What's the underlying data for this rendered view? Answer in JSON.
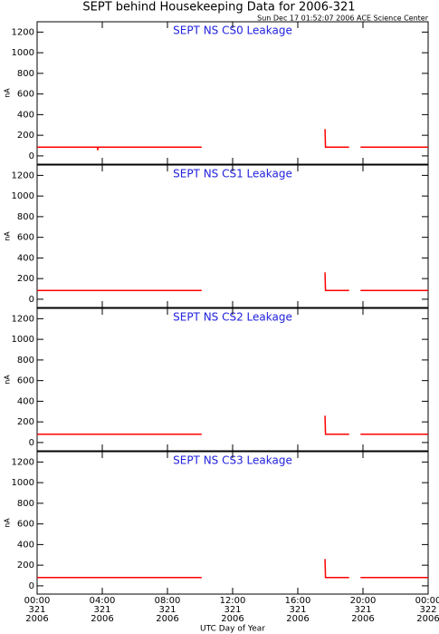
{
  "title": "SEPT behind Housekeeping Data for 2006-321",
  "subtitle": "Sun Dec 17 01:52:07 2006 ACE Science Center",
  "chart_data": [
    {
      "type": "line",
      "title": "SEPT NS CS0 Leakage",
      "y_label": "nA",
      "x": [
        0,
        3.7,
        3.72,
        3.74,
        10.1,
        10.2,
        17.67,
        17.7,
        19.15,
        19.2,
        19.85,
        24
      ],
      "series": [
        {
          "color": "#ff0000",
          "values": [
            85,
            85,
            55,
            85,
            85,
            null,
            260,
            85,
            85,
            null,
            85,
            85
          ]
        }
      ],
      "xlim": [
        0,
        24
      ],
      "xticks": [
        0,
        4,
        8,
        12,
        16,
        20,
        24
      ],
      "ylim": [
        -80,
        1300
      ],
      "yticks": [
        0,
        200,
        400,
        600,
        800,
        1000,
        1200
      ]
    },
    {
      "type": "line",
      "title": "SEPT NS CS1 Leakage",
      "y_label": "nA",
      "x": [
        0,
        10.1,
        10.2,
        17.67,
        17.7,
        19.15,
        19.2,
        19.85,
        24
      ],
      "series": [
        {
          "color": "#ff0000",
          "values": [
            85,
            85,
            null,
            260,
            85,
            85,
            null,
            85,
            85
          ]
        }
      ],
      "xlim": [
        0,
        24
      ],
      "xticks": [
        0,
        4,
        8,
        12,
        16,
        20,
        24
      ],
      "ylim": [
        -80,
        1300
      ],
      "yticks": [
        0,
        200,
        400,
        600,
        800,
        1000,
        1200
      ]
    },
    {
      "type": "line",
      "title": "SEPT NS CS2 Leakage",
      "y_label": "nA",
      "x": [
        0,
        10.1,
        10.2,
        17.67,
        17.7,
        19.15,
        19.2,
        19.85,
        24
      ],
      "series": [
        {
          "color": "#ff0000",
          "values": [
            80,
            80,
            null,
            260,
            80,
            80,
            null,
            80,
            80
          ]
        }
      ],
      "xlim": [
        0,
        24
      ],
      "xticks": [
        0,
        4,
        8,
        12,
        16,
        20,
        24
      ],
      "ylim": [
        -80,
        1300
      ],
      "yticks": [
        0,
        200,
        400,
        600,
        800,
        1000,
        1200
      ]
    },
    {
      "type": "line",
      "title": "SEPT NS CS3 Leakage",
      "y_label": "nA",
      "x_label": "UTC Day of Year",
      "x": [
        0,
        10.1,
        10.2,
        17.67,
        17.7,
        19.15,
        19.2,
        19.85,
        24
      ],
      "series": [
        {
          "color": "#ff0000",
          "values": [
            80,
            80,
            null,
            260,
            80,
            80,
            null,
            80,
            80
          ]
        }
      ],
      "xlim": [
        0,
        24
      ],
      "xticks": [
        {
          "value": 0,
          "label": [
            "00:00",
            "321",
            "2006"
          ]
        },
        {
          "value": 4,
          "label": [
            "04:00",
            "321",
            "2006"
          ]
        },
        {
          "value": 8,
          "label": [
            "08:00",
            "321",
            "2006"
          ]
        },
        {
          "value": 12,
          "label": [
            "12:00",
            "321",
            "2006"
          ]
        },
        {
          "value": 16,
          "label": [
            "16:00",
            "321",
            "2006"
          ]
        },
        {
          "value": 20,
          "label": [
            "20:00",
            "321",
            "2006"
          ]
        },
        {
          "value": 24,
          "label": [
            "00:00",
            "322",
            "2006"
          ]
        }
      ],
      "ylim": [
        -80,
        1300
      ],
      "yticks": [
        0,
        200,
        400,
        600,
        800,
        1000,
        1200
      ]
    }
  ]
}
